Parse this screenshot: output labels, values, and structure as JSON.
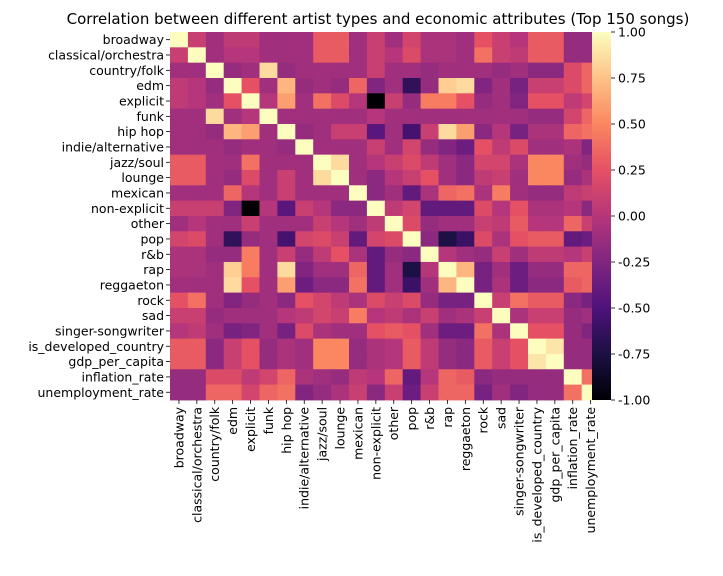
{
  "chart_data": {
    "type": "heatmap",
    "title": "Correlation between different artist types and economic attributes (Top 150 songs)",
    "xlabel": "",
    "ylabel": "",
    "variables": [
      "broadway",
      "classical/orchestra",
      "country/folk",
      "edm",
      "explicit",
      "funk",
      "hip hop",
      "indie/alternative",
      "jazz/soul",
      "lounge",
      "mexican",
      "non-explicit",
      "other",
      "pop",
      "r&b",
      "rap",
      "reggaeton",
      "rock",
      "sad",
      "singer-songwriter",
      "is_developed_country",
      "gdp_per_capita",
      "inflation_rate",
      "unemployment_rate"
    ],
    "values": [
      [
        1.0,
        0.1,
        -0.1,
        0.05,
        0.05,
        -0.1,
        -0.1,
        -0.1,
        0.3,
        0.3,
        -0.1,
        0.1,
        -0.1,
        0.15,
        -0.05,
        -0.05,
        -0.1,
        0.25,
        0.1,
        0.0,
        0.3,
        0.3,
        -0.15,
        -0.15
      ],
      [
        0.1,
        1.0,
        -0.1,
        0.0,
        0.0,
        -0.1,
        -0.1,
        -0.1,
        0.3,
        0.3,
        -0.1,
        0.1,
        0.0,
        0.2,
        -0.05,
        -0.05,
        -0.1,
        0.4,
        0.1,
        0.05,
        0.3,
        0.3,
        -0.15,
        -0.15
      ],
      [
        -0.1,
        -0.1,
        1.0,
        -0.15,
        -0.1,
        0.85,
        -0.15,
        -0.1,
        -0.1,
        -0.1,
        -0.1,
        0.1,
        -0.1,
        -0.1,
        -0.15,
        -0.1,
        -0.1,
        -0.1,
        -0.15,
        -0.1,
        -0.2,
        -0.2,
        0.2,
        0.35
      ],
      [
        0.05,
        0.0,
        -0.15,
        1.0,
        0.25,
        -0.1,
        0.7,
        -0.15,
        -0.1,
        -0.15,
        0.35,
        -0.25,
        -0.1,
        -0.65,
        -0.15,
        0.8,
        0.85,
        -0.25,
        -0.1,
        -0.3,
        0.1,
        0.1,
        0.2,
        0.35
      ],
      [
        0.05,
        0.0,
        -0.1,
        0.25,
        1.0,
        0.0,
        0.6,
        -0.1,
        0.4,
        0.2,
        0.0,
        -1.0,
        0.1,
        -0.15,
        0.45,
        0.45,
        0.25,
        -0.15,
        -0.1,
        -0.25,
        0.25,
        0.25,
        0.05,
        0.15
      ],
      [
        -0.1,
        -0.1,
        0.85,
        -0.1,
        0.0,
        1.0,
        -0.1,
        -0.1,
        -0.1,
        -0.1,
        -0.1,
        0.0,
        -0.1,
        -0.1,
        -0.1,
        -0.1,
        -0.1,
        -0.1,
        -0.1,
        -0.1,
        -0.15,
        -0.15,
        0.15,
        0.35
      ],
      [
        -0.1,
        -0.1,
        -0.15,
        0.7,
        0.6,
        -0.1,
        1.0,
        -0.15,
        -0.1,
        0.1,
        0.1,
        -0.45,
        -0.1,
        -0.55,
        0.1,
        0.85,
        0.6,
        -0.2,
        0.0,
        -0.3,
        -0.05,
        -0.05,
        0.35,
        0.4
      ],
      [
        -0.1,
        -0.1,
        -0.1,
        -0.15,
        -0.1,
        -0.1,
        -0.15,
        1.0,
        -0.1,
        -0.1,
        -0.1,
        0.1,
        -0.1,
        0.15,
        -0.15,
        -0.25,
        -0.35,
        0.25,
        0.05,
        0.2,
        -0.1,
        -0.1,
        -0.05,
        -0.25
      ],
      [
        0.3,
        0.3,
        -0.1,
        -0.1,
        0.4,
        -0.1,
        -0.1,
        -0.1,
        1.0,
        0.85,
        -0.1,
        0.0,
        0.1,
        0.2,
        0.05,
        -0.1,
        -0.2,
        0.15,
        0.15,
        -0.05,
        0.5,
        0.5,
        -0.1,
        -0.15
      ],
      [
        0.3,
        0.3,
        -0.1,
        -0.15,
        0.2,
        -0.1,
        0.1,
        -0.1,
        0.85,
        1.0,
        -0.1,
        -0.2,
        0.0,
        0.1,
        0.25,
        -0.1,
        -0.2,
        0.05,
        0.1,
        -0.1,
        0.5,
        0.5,
        -0.15,
        -0.05
      ],
      [
        -0.1,
        -0.1,
        -0.1,
        0.35,
        0.0,
        -0.1,
        0.1,
        -0.1,
        -0.1,
        -0.1,
        1.0,
        -0.2,
        -0.1,
        -0.4,
        -0.05,
        0.35,
        0.4,
        -0.05,
        0.45,
        -0.1,
        -0.15,
        -0.15,
        0.05,
        0.1
      ],
      [
        0.1,
        0.1,
        0.1,
        -0.25,
        -1.0,
        0.0,
        -0.45,
        0.1,
        0.0,
        -0.2,
        -0.2,
        1.0,
        0.05,
        0.15,
        -0.4,
        -0.4,
        -0.4,
        0.2,
        0.0,
        0.25,
        -0.05,
        -0.05,
        0.0,
        -0.2
      ],
      [
        -0.1,
        0.0,
        -0.1,
        -0.1,
        0.1,
        -0.1,
        -0.1,
        -0.1,
        0.1,
        0.0,
        -0.1,
        0.05,
        1.0,
        0.2,
        -0.15,
        -0.1,
        -0.1,
        0.1,
        0.05,
        0.3,
        0.0,
        0.0,
        0.35,
        0.1
      ],
      [
        0.15,
        0.2,
        -0.1,
        -0.65,
        -0.15,
        -0.1,
        -0.55,
        0.15,
        0.2,
        0.1,
        -0.4,
        0.15,
        0.2,
        1.0,
        -0.2,
        -0.75,
        -0.6,
        0.2,
        -0.05,
        0.25,
        0.3,
        0.3,
        -0.4,
        -0.35
      ],
      [
        -0.05,
        -0.05,
        -0.15,
        -0.15,
        0.45,
        -0.1,
        0.1,
        -0.15,
        0.05,
        0.25,
        -0.05,
        -0.4,
        -0.15,
        -0.2,
        1.0,
        0.0,
        -0.1,
        -0.15,
        0.1,
        -0.1,
        0.05,
        0.05,
        0.0,
        0.1
      ],
      [
        -0.05,
        -0.05,
        -0.1,
        0.8,
        0.45,
        -0.1,
        0.85,
        -0.25,
        -0.1,
        -0.1,
        0.35,
        -0.4,
        -0.1,
        -0.75,
        0.0,
        1.0,
        0.7,
        -0.3,
        -0.1,
        -0.35,
        -0.15,
        -0.15,
        0.35,
        0.35
      ],
      [
        -0.1,
        -0.1,
        -0.1,
        0.85,
        0.25,
        -0.1,
        0.6,
        -0.35,
        -0.2,
        -0.2,
        0.4,
        -0.4,
        -0.1,
        -0.6,
        -0.1,
        0.7,
        1.0,
        -0.3,
        -0.05,
        -0.35,
        -0.2,
        -0.2,
        0.3,
        0.35
      ],
      [
        0.25,
        0.4,
        -0.1,
        -0.25,
        -0.15,
        -0.1,
        -0.2,
        0.25,
        0.15,
        0.05,
        -0.05,
        0.2,
        0.1,
        0.2,
        -0.15,
        -0.3,
        -0.3,
        1.0,
        0.1,
        0.4,
        0.3,
        0.3,
        -0.2,
        -0.3
      ],
      [
        0.1,
        0.1,
        -0.15,
        -0.1,
        -0.1,
        -0.1,
        0.0,
        0.05,
        0.15,
        0.1,
        0.45,
        0.0,
        0.05,
        -0.05,
        0.1,
        -0.1,
        -0.05,
        0.1,
        1.0,
        -0.05,
        0.1,
        0.1,
        -0.15,
        -0.1
      ],
      [
        0.0,
        0.05,
        -0.1,
        -0.3,
        -0.25,
        -0.1,
        -0.3,
        0.2,
        -0.05,
        -0.1,
        -0.1,
        0.25,
        0.3,
        0.25,
        -0.1,
        -0.35,
        -0.35,
        0.4,
        -0.05,
        1.0,
        0.25,
        0.25,
        -0.15,
        -0.25
      ],
      [
        0.3,
        0.3,
        -0.2,
        0.1,
        0.25,
        -0.15,
        -0.05,
        -0.1,
        0.5,
        0.5,
        -0.15,
        -0.05,
        0.0,
        0.3,
        0.05,
        -0.15,
        -0.2,
        0.3,
        0.1,
        0.25,
        1.0,
        0.9,
        -0.15,
        -0.15
      ],
      [
        0.3,
        0.3,
        -0.2,
        0.1,
        0.25,
        -0.15,
        -0.05,
        -0.1,
        0.5,
        0.5,
        -0.15,
        -0.05,
        0.0,
        0.3,
        0.05,
        -0.15,
        -0.2,
        0.3,
        0.1,
        0.25,
        0.9,
        1.0,
        -0.15,
        -0.15
      ],
      [
        -0.15,
        -0.15,
        0.2,
        0.2,
        0.05,
        0.15,
        0.35,
        -0.05,
        -0.1,
        -0.15,
        0.05,
        0.0,
        0.35,
        -0.4,
        0.0,
        0.35,
        0.3,
        -0.2,
        -0.15,
        -0.15,
        -0.15,
        -0.15,
        1.0,
        0.4
      ],
      [
        -0.15,
        -0.15,
        0.35,
        0.35,
        0.15,
        0.35,
        0.4,
        -0.25,
        -0.15,
        -0.05,
        0.1,
        -0.2,
        0.1,
        -0.35,
        0.1,
        0.35,
        0.35,
        -0.3,
        -0.1,
        -0.25,
        -0.15,
        -0.15,
        0.4,
        1.0
      ]
    ],
    "vmin": -1.0,
    "vmax": 1.0,
    "colormap": "magma",
    "colorbar_ticks": [
      "1.00",
      "0.75",
      "0.50",
      "0.25",
      "0.00",
      "-0.25",
      "-0.50",
      "-0.75",
      "-1.00"
    ],
    "colorbar_tick_values": [
      1.0,
      0.75,
      0.5,
      0.25,
      0.0,
      -0.25,
      -0.5,
      -0.75,
      -1.0
    ]
  }
}
